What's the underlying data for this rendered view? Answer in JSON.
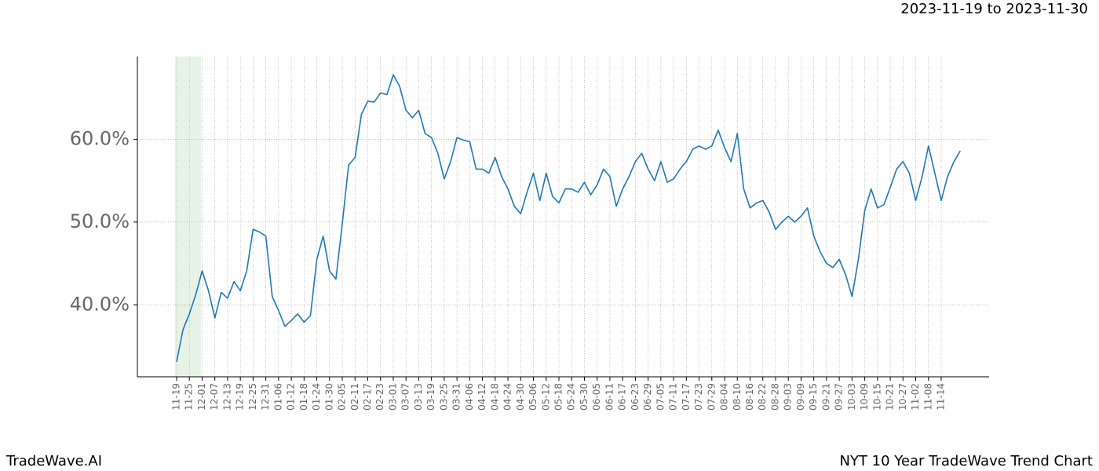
{
  "chart_data": {
    "type": "line",
    "title": "2023-11-19 to 2023-11-30",
    "brand": "TradeWave.AI",
    "caption": "NYT 10 Year TradeWave Trend Chart",
    "categories": [
      "11-19",
      null,
      "11-25",
      null,
      "12-01",
      null,
      "12-07",
      null,
      "12-13",
      null,
      "12-19",
      null,
      "12-25",
      null,
      "12-31",
      null,
      "01-06",
      null,
      "01-12",
      null,
      "01-18",
      null,
      "01-24",
      null,
      "01-30",
      null,
      "02-05",
      null,
      "02-11",
      null,
      "02-17",
      null,
      "02-23",
      null,
      "03-01",
      null,
      "03-07",
      null,
      "03-13",
      null,
      "03-19",
      null,
      "03-25",
      null,
      "03-31",
      null,
      "04-06",
      null,
      "04-12",
      null,
      "04-18",
      null,
      "04-24",
      null,
      "04-30",
      null,
      "05-06",
      null,
      "05-12",
      null,
      "05-18",
      null,
      "05-24",
      null,
      "05-30",
      null,
      "06-05",
      null,
      "06-11",
      null,
      "06-17",
      null,
      "06-23",
      null,
      "06-29",
      null,
      "07-05",
      null,
      "07-11",
      null,
      "07-17",
      null,
      "07-23",
      null,
      "07-29",
      null,
      "08-04",
      null,
      "08-10",
      null,
      "08-16",
      null,
      "08-22",
      null,
      "08-28",
      null,
      "09-03",
      null,
      "09-09",
      null,
      "09-15",
      null,
      "09-21",
      null,
      "09-27",
      null,
      "10-03",
      null,
      "10-09",
      null,
      "10-15",
      null,
      "10-21",
      null,
      "10-27",
      null,
      "11-02",
      null,
      "11-08",
      null,
      "11-14",
      null,
      null,
      null
    ],
    "series": [
      {
        "name": "NYT",
        "color": "#1f77b4",
        "values": [
          33.1,
          37.0,
          38.9,
          41.2,
          44.1,
          41.7,
          38.4,
          41.5,
          40.8,
          42.8,
          41.7,
          44.1,
          49.1,
          48.8,
          48.3,
          41.0,
          39.3,
          37.4,
          38.1,
          38.9,
          37.9,
          38.7,
          45.5,
          48.3,
          44.1,
          43.1,
          49.8,
          56.9,
          57.8,
          63.0,
          64.6,
          64.5,
          65.6,
          65.4,
          67.8,
          66.4,
          63.5,
          62.6,
          63.5,
          60.7,
          60.2,
          58.3,
          55.2,
          57.3,
          60.2,
          59.9,
          59.7,
          56.4,
          56.4,
          55.9,
          57.8,
          55.5,
          54.0,
          51.9,
          51.0,
          53.6,
          55.9,
          52.6,
          55.9,
          53.1,
          52.3,
          54.0,
          54.0,
          53.6,
          54.8,
          53.3,
          54.5,
          56.4,
          55.5,
          51.9,
          54.0,
          55.5,
          57.3,
          58.3,
          56.4,
          55.0,
          57.3,
          54.8,
          55.2,
          56.4,
          57.3,
          58.8,
          59.2,
          58.8,
          59.2,
          61.1,
          59.0,
          57.3,
          60.7,
          54.0,
          51.7,
          52.3,
          52.6,
          51.2,
          49.1,
          50.0,
          50.7,
          50.0,
          50.7,
          51.7,
          48.3,
          46.4,
          45.0,
          44.5,
          45.5,
          43.6,
          41.0,
          45.5,
          51.4,
          54.0,
          51.7,
          52.1,
          54.2,
          56.4,
          57.3,
          55.9,
          52.6,
          55.5,
          59.2,
          55.9,
          52.6,
          55.5,
          57.3,
          58.6
        ]
      }
    ],
    "ylim": [
      31.3,
      70
    ],
    "yticks": [
      {
        "value": 40,
        "label": "40.0%"
      },
      {
        "value": 50,
        "label": "50.0%"
      },
      {
        "value": 60,
        "label": "60.0%"
      }
    ],
    "grid": true
  }
}
